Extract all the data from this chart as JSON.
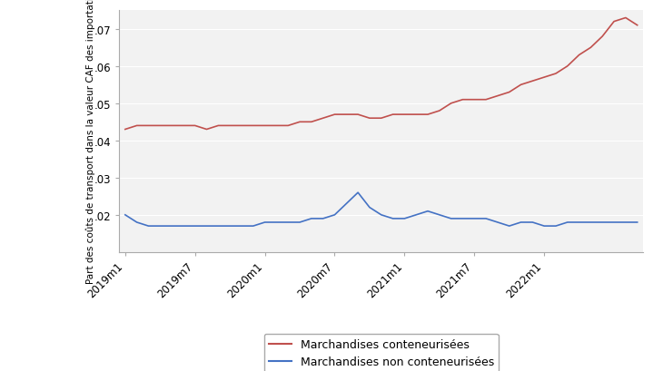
{
  "ylabel": "Part des coûts de transport dans la valeur CAF des importations",
  "ylim": [
    0.01,
    0.075
  ],
  "yticks": [
    0.02,
    0.03,
    0.04,
    0.05,
    0.06,
    0.07
  ],
  "ytick_labels": [
    ".02",
    ".03",
    ".04",
    ".05",
    ".06",
    ".07"
  ],
  "xtick_labels": [
    "2019m1",
    "2019m7",
    "2020m1",
    "2020m7",
    "2021m1",
    "2021m7",
    "2022m1"
  ],
  "legend_labels": [
    "Marchandises conteneurisées",
    "Marchandises non conteneurisées"
  ],
  "color_red": "#c0504d",
  "color_blue": "#4472c4",
  "plot_bg": "#f2f2f2",
  "fig_bg": "#ffffff",
  "grid_color": "#ffffff",
  "spine_color": "#aaaaaa",
  "red_series": [
    0.043,
    0.044,
    0.044,
    0.044,
    0.044,
    0.044,
    0.044,
    0.043,
    0.044,
    0.044,
    0.044,
    0.044,
    0.044,
    0.044,
    0.044,
    0.045,
    0.045,
    0.046,
    0.047,
    0.047,
    0.047,
    0.046,
    0.046,
    0.047,
    0.047,
    0.047,
    0.047,
    0.048,
    0.05,
    0.051,
    0.051,
    0.051,
    0.052,
    0.053,
    0.055,
    0.056,
    0.057,
    0.058,
    0.06,
    0.063,
    0.065,
    0.068,
    0.072,
    0.073,
    0.071
  ],
  "blue_series": [
    0.02,
    0.018,
    0.017,
    0.017,
    0.017,
    0.017,
    0.017,
    0.017,
    0.017,
    0.017,
    0.017,
    0.017,
    0.018,
    0.018,
    0.018,
    0.018,
    0.019,
    0.019,
    0.02,
    0.023,
    0.026,
    0.022,
    0.02,
    0.019,
    0.019,
    0.02,
    0.021,
    0.02,
    0.019,
    0.019,
    0.019,
    0.019,
    0.018,
    0.017,
    0.018,
    0.018,
    0.017,
    0.017,
    0.018,
    0.018,
    0.018,
    0.018,
    0.018,
    0.018,
    0.018
  ],
  "n_points": 45,
  "xtick_pos": [
    0,
    6,
    12,
    18,
    24,
    30,
    36
  ],
  "linewidth": 1.2,
  "tick_fontsize": 8.5,
  "ylabel_fontsize": 7.5,
  "legend_fontsize": 9
}
